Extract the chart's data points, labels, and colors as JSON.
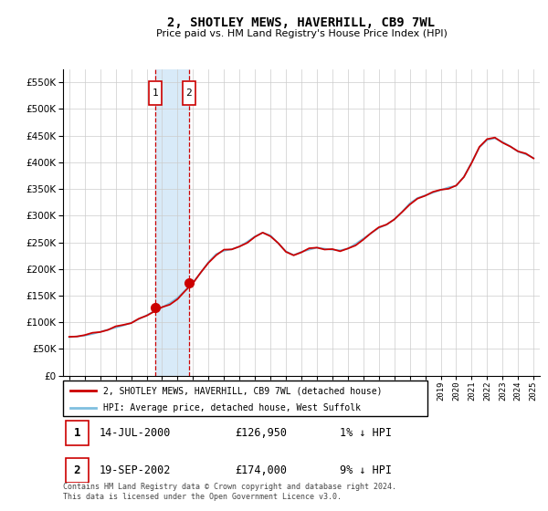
{
  "title": "2, SHOTLEY MEWS, HAVERHILL, CB9 7WL",
  "subtitle": "Price paid vs. HM Land Registry's House Price Index (HPI)",
  "legend_line1": "2, SHOTLEY MEWS, HAVERHILL, CB9 7WL (detached house)",
  "legend_line2": "HPI: Average price, detached house, West Suffolk",
  "transaction1_date": "14-JUL-2000",
  "transaction1_price": "£126,950",
  "transaction1_hpi": "1% ↓ HPI",
  "transaction2_date": "19-SEP-2002",
  "transaction2_price": "£174,000",
  "transaction2_hpi": "9% ↓ HPI",
  "footnote": "Contains HM Land Registry data © Crown copyright and database right 2024.\nThis data is licensed under the Open Government Licence v3.0.",
  "ylim": [
    0,
    575000
  ],
  "yticks": [
    0,
    50000,
    100000,
    150000,
    200000,
    250000,
    300000,
    350000,
    400000,
    450000,
    500000,
    550000
  ],
  "hpi_color": "#7fbfdf",
  "price_color": "#cc0000",
  "shading_color": "#d8eaf8",
  "transaction1_x": 2000.54,
  "transaction2_x": 2002.72,
  "background_color": "#ffffff",
  "grid_color": "#cccccc",
  "years_hpi": [
    1995.0,
    1995.5,
    1996.0,
    1996.5,
    1997.0,
    1997.5,
    1998.0,
    1998.5,
    1999.0,
    1999.5,
    2000.0,
    2000.5,
    2001.0,
    2001.5,
    2002.0,
    2002.5,
    2003.0,
    2003.5,
    2004.0,
    2004.5,
    2005.0,
    2005.5,
    2006.0,
    2006.5,
    2007.0,
    2007.5,
    2008.0,
    2008.5,
    2009.0,
    2009.5,
    2010.0,
    2010.5,
    2011.0,
    2011.5,
    2012.0,
    2012.5,
    2013.0,
    2013.5,
    2014.0,
    2014.5,
    2015.0,
    2015.5,
    2016.0,
    2016.5,
    2017.0,
    2017.5,
    2018.0,
    2018.5,
    2019.0,
    2019.5,
    2020.0,
    2020.5,
    2021.0,
    2021.5,
    2022.0,
    2022.5,
    2023.0,
    2023.5,
    2024.0,
    2024.5,
    2025.0
  ],
  "hpi_values": [
    72000,
    73500,
    75000,
    78000,
    82000,
    86000,
    90000,
    94000,
    99000,
    106000,
    113000,
    121000,
    128000,
    136000,
    146000,
    160000,
    175000,
    193000,
    213000,
    228000,
    234000,
    237000,
    242000,
    251000,
    261000,
    268000,
    263000,
    248000,
    233000,
    226000,
    232000,
    236000,
    240000,
    238000,
    236000,
    235000,
    238000,
    247000,
    257000,
    267000,
    277000,
    283000,
    293000,
    307000,
    323000,
    333000,
    338000,
    343000,
    348000,
    353000,
    356000,
    373000,
    400000,
    428000,
    442000,
    445000,
    438000,
    430000,
    420000,
    415000,
    408000
  ],
  "price_values": [
    72000,
    73500,
    75000,
    78000,
    82000,
    86000,
    90000,
    94000,
    99000,
    106000,
    113000,
    121000,
    128000,
    136000,
    146000,
    160000,
    175000,
    193000,
    213000,
    228000,
    234000,
    237000,
    242000,
    251000,
    261000,
    268000,
    263000,
    248000,
    233000,
    226000,
    232000,
    236000,
    240000,
    238000,
    236000,
    235000,
    238000,
    247000,
    257000,
    267000,
    277000,
    283000,
    293000,
    307000,
    323000,
    333000,
    338000,
    343000,
    348000,
    353000,
    356000,
    373000,
    400000,
    428000,
    442000,
    445000,
    438000,
    430000,
    420000,
    415000,
    408000
  ]
}
